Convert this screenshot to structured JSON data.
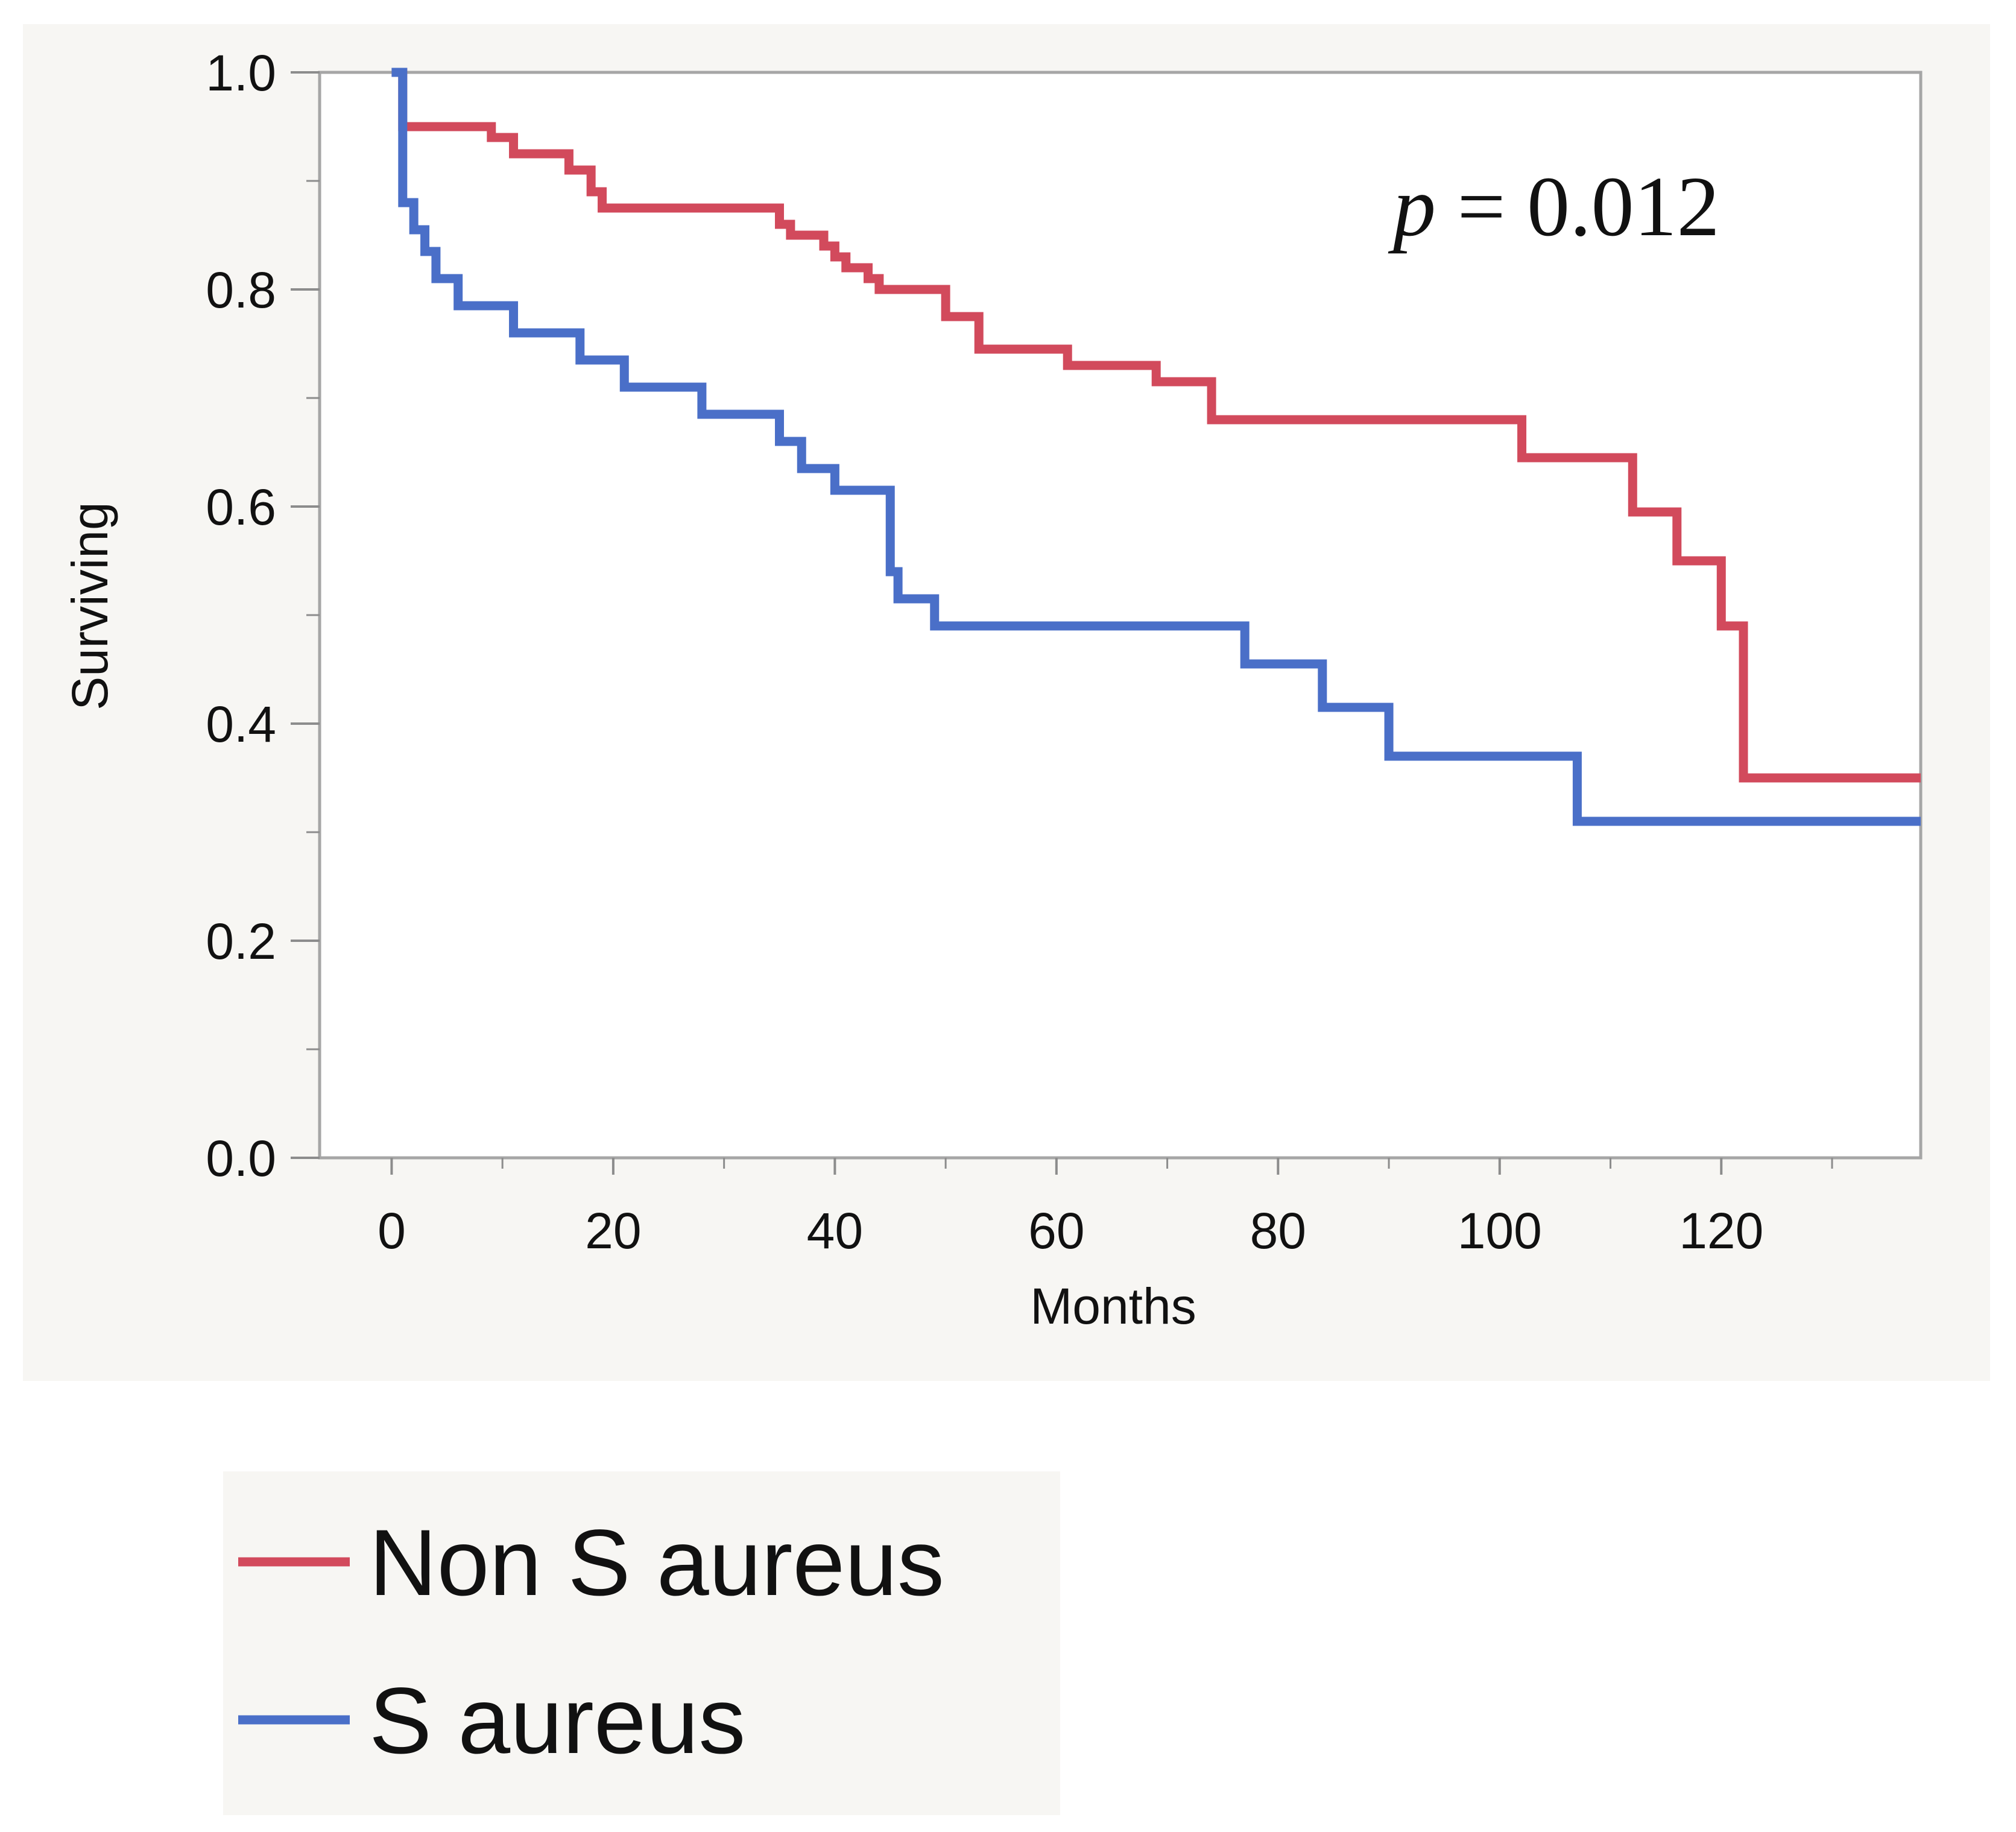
{
  "chart_data": {
    "type": "line",
    "step": true,
    "xlabel": "Months",
    "ylabel": "Surviving",
    "xlim": [
      -6.5,
      138
    ],
    "ylim": [
      0,
      1.0
    ],
    "xticks": [
      0,
      20,
      40,
      60,
      80,
      100,
      120
    ],
    "xtick_labels": [
      "0",
      "20",
      "40",
      "60",
      "80",
      "100",
      "120"
    ],
    "x_minor_ticks": [
      10,
      30,
      50,
      70,
      90,
      110,
      130
    ],
    "yticks": [
      0.0,
      0.2,
      0.4,
      0.6,
      0.8,
      1.0
    ],
    "ytick_labels": [
      "0.0",
      "0.2",
      "0.4",
      "0.6",
      "0.8",
      "1.0"
    ],
    "y_minor_ticks": [
      0.1,
      0.3,
      0.5,
      0.7,
      0.9
    ],
    "grid": false,
    "legend_position": "bottom-left, below plot",
    "annotation": {
      "italic_part": "p",
      "rest": " = 0.012"
    },
    "series": [
      {
        "name": "Non S aureus",
        "color": "#d24a5c",
        "x": [
          0,
          1,
          1.5,
          9,
          11,
          16,
          18,
          19,
          35,
          36,
          39,
          40,
          41,
          43,
          44,
          50,
          53,
          61,
          69,
          74,
          102,
          112,
          116,
          120,
          122,
          138
        ],
        "y": [
          1.0,
          0.95,
          0.95,
          0.94,
          0.925,
          0.91,
          0.89,
          0.875,
          0.86,
          0.85,
          0.84,
          0.83,
          0.82,
          0.81,
          0.8,
          0.775,
          0.745,
          0.73,
          0.715,
          0.68,
          0.645,
          0.595,
          0.55,
          0.49,
          0.35,
          0.35
        ]
      },
      {
        "name": "S aureus",
        "color": "#4a6fc8",
        "x": [
          0,
          1,
          2,
          3,
          4,
          6,
          11,
          17,
          21,
          28,
          35,
          37,
          40,
          45,
          45.7,
          46.5,
          49,
          77,
          84,
          90,
          107,
          138
        ],
        "y": [
          1.0,
          0.88,
          0.855,
          0.835,
          0.81,
          0.785,
          0.76,
          0.735,
          0.71,
          0.685,
          0.66,
          0.635,
          0.615,
          0.54,
          0.515,
          0.515,
          0.49,
          0.455,
          0.415,
          0.37,
          0.31,
          0.31
        ]
      }
    ]
  }
}
